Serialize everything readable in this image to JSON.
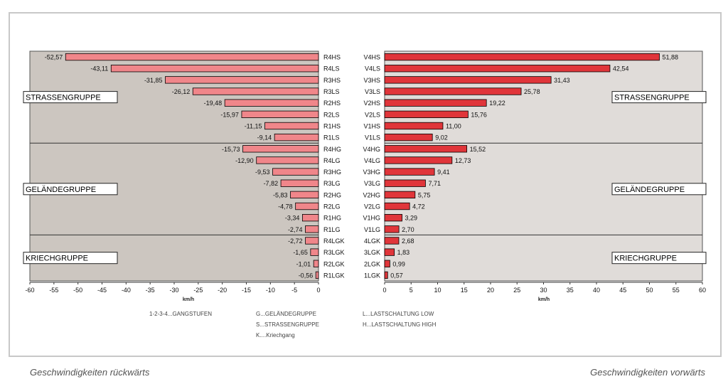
{
  "captions": {
    "left": "Geschwindigkeiten rückwärts",
    "right": "Geschwindigkeiten vorwärts"
  },
  "legend": {
    "gears": "1-2-3-4...GANGSTUFEN",
    "g": "G...GELÄNDEGRUPPE",
    "s": "S...STRASSENGRUPPE",
    "k": "K....Kriechgang",
    "l": "L...LASTSCHALTUNG LOW",
    "h": "H...LASTSCHALTUNG HIGH"
  },
  "colors": {
    "panel": "#ccc6c0",
    "panel_right": "#e0dcd9",
    "reverse_bar": "#f0868a",
    "forward_bar": "#e0353a",
    "bar_outline": "#000000"
  },
  "groups": [
    "STRASSENGRUPPE",
    "GELÄNDEGRUPPE",
    "KRIECHGRUPPE"
  ],
  "chart_data": [
    {
      "type": "bar",
      "orientation": "horizontal",
      "title": "",
      "xlabel": "km/h",
      "xlim": [
        -60,
        0
      ],
      "xticks": [
        -60,
        -55,
        -50,
        -45,
        -40,
        -35,
        -30,
        -25,
        -20,
        -15,
        -10,
        -5,
        0
      ],
      "categories": [
        "R4HS",
        "R4LS",
        "R3HS",
        "R3LS",
        "R2HS",
        "R2LS",
        "R1HS",
        "R1LS",
        "R4HG",
        "R4LG",
        "R3HG",
        "R3LG",
        "R2HG",
        "R2LG",
        "R1HG",
        "R1LG",
        "R4LGK",
        "R3LGK",
        "R2LGK",
        "R1LGK"
      ],
      "values": [
        -52.57,
        -43.11,
        -31.85,
        -26.12,
        -19.48,
        -15.97,
        -11.15,
        -9.14,
        -15.73,
        -12.9,
        -9.53,
        -7.82,
        -5.83,
        -4.78,
        -3.34,
        -2.74,
        -2.72,
        -1.65,
        -1.01,
        -0.56
      ],
      "labels": [
        "-52,57",
        "-43,11",
        "-31,85",
        "-26,12",
        "-19,48",
        "-15,97",
        "-11,15",
        "-9,14",
        "-15,73",
        "-12,90",
        "-9,53",
        "-7,82",
        "-5,83",
        "-4,78",
        "-3,34",
        "-2,74",
        "-2,72",
        "-1,65",
        "-1,01",
        "-0,56"
      ]
    },
    {
      "type": "bar",
      "orientation": "horizontal",
      "title": "",
      "xlabel": "km/h",
      "xlim": [
        0,
        60
      ],
      "xticks": [
        0,
        5,
        10,
        15,
        20,
        25,
        30,
        35,
        40,
        45,
        50,
        55,
        60
      ],
      "categories": [
        "V4HS",
        "V4LS",
        "V3HS",
        "V3LS",
        "V2HS",
        "V2LS",
        "V1HS",
        "V1LS",
        "V4HG",
        "V4LG",
        "V3HG",
        "V3LG",
        "V2HG",
        "V2LG",
        "V1HG",
        "V1LG",
        "4LGK",
        "3LGK",
        "2LGK",
        "1LGK"
      ],
      "values": [
        51.88,
        42.54,
        31.43,
        25.78,
        19.22,
        15.76,
        11.0,
        9.02,
        15.52,
        12.73,
        9.41,
        7.71,
        5.75,
        4.72,
        3.29,
        2.7,
        2.68,
        1.83,
        0.99,
        0.57
      ],
      "labels": [
        "51,88",
        "42,54",
        "31,43",
        "25,78",
        "19,22",
        "15,76",
        "11,00",
        "9,02",
        "15,52",
        "12,73",
        "9,41",
        "7,71",
        "5,75",
        "4,72",
        "3,29",
        "2,70",
        "2,68",
        "1,83",
        "0,99",
        "0,57"
      ]
    }
  ]
}
